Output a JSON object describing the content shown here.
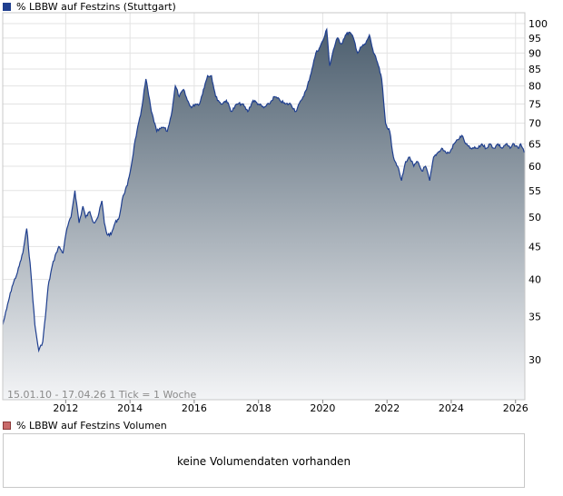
{
  "price_panel": {
    "legend_label": "%  LBBW auf Festzins (Stuttgart)",
    "info_text": "15.01.10 - 17.04.26   1 Tick = 1 Woche"
  },
  "volume_panel": {
    "legend_label": "%  LBBW auf Festzins Volumen",
    "message": "keine Volumendaten vorhanden"
  },
  "colors": {
    "line": "#1f3f8f",
    "fill_top": "#4d5f6f",
    "fill_bottom": "#f3f4f6",
    "grid": "#e3e3e3",
    "frame": "#c8c8c8",
    "volume_swatch": "#c96a6a"
  },
  "chart_data": {
    "type": "area",
    "scale": "log",
    "grid": true,
    "legend": "top-left",
    "xlim": [
      "2010-01-15",
      "2026-04-17"
    ],
    "ylim": [
      26,
      104
    ],
    "x_ticks": [
      "2012",
      "2014",
      "2016",
      "2018",
      "2020",
      "2022",
      "2024",
      "2026"
    ],
    "y_ticks": [
      30,
      35,
      40,
      45,
      50,
      55,
      60,
      65,
      70,
      75,
      80,
      85,
      90,
      95,
      100
    ],
    "series": [
      {
        "x": [
          "2010-01-15",
          "2010-03-01",
          "2010-05-01",
          "2010-07-01",
          "2010-09-01",
          "2010-10-15",
          "2010-12-01",
          "2011-01-15",
          "2011-03-01",
          "2011-04-15",
          "2011-05-15",
          "2011-06-15",
          "2011-08-01",
          "2011-09-15",
          "2011-10-15",
          "2011-12-01",
          "2012-01-15",
          "2012-03-01",
          "2012-04-15",
          "2012-06-01",
          "2012-07-15",
          "2012-08-15",
          "2012-10-01",
          "2012-11-15",
          "2013-01-01",
          "2013-02-15",
          "2013-03-15",
          "2013-04-15",
          "2013-06-01",
          "2013-07-15",
          "2013-09-01",
          "2013-10-15",
          "2013-12-01",
          "2014-01-15",
          "2014-03-01",
          "2014-05-01",
          "2014-07-01",
          "2014-09-01",
          "2014-11-01",
          "2015-01-15",
          "2015-03-01",
          "2015-04-15",
          "2015-06-01",
          "2015-07-15",
          "2015-09-01",
          "2015-10-15",
          "2015-12-01",
          "2016-01-15",
          "2016-03-01",
          "2016-04-15",
          "2016-06-01",
          "2016-07-15",
          "2016-09-01",
          "2016-11-01",
          "2017-01-01",
          "2017-03-01",
          "2017-05-01",
          "2017-07-01",
          "2017-09-01",
          "2017-11-01",
          "2018-01-01",
          "2018-03-01",
          "2018-05-01",
          "2018-07-01",
          "2018-09-01",
          "2018-11-01",
          "2019-01-01",
          "2019-03-01",
          "2019-05-01",
          "2019-07-01",
          "2019-09-01",
          "2019-10-15",
          "2019-12-01",
          "2020-01-15",
          "2020-02-15",
          "2020-03-20",
          "2020-05-01",
          "2020-06-15",
          "2020-08-01",
          "2020-09-15",
          "2020-11-01",
          "2020-12-15",
          "2021-02-01",
          "2021-03-15",
          "2021-05-01",
          "2021-06-15",
          "2021-08-01",
          "2021-09-15",
          "2021-11-01",
          "2021-12-15",
          "2022-02-01",
          "2022-03-15",
          "2022-05-01",
          "2022-06-15",
          "2022-08-01",
          "2022-09-15",
          "2022-11-01",
          "2022-12-15",
          "2023-02-01",
          "2023-03-15",
          "2023-05-01",
          "2023-06-15",
          "2023-08-01",
          "2023-09-15",
          "2023-11-01",
          "2023-12-15",
          "2024-02-01",
          "2024-03-15",
          "2024-05-01",
          "2024-06-15",
          "2024-08-01",
          "2024-09-15",
          "2024-11-01",
          "2024-12-15",
          "2025-02-01",
          "2025-03-15",
          "2025-05-01",
          "2025-06-15",
          "2025-08-01",
          "2025-09-15",
          "2025-11-01",
          "2025-12-15",
          "2026-02-01",
          "2026-03-01",
          "2026-04-17"
        ],
        "y": [
          34,
          36,
          39,
          41,
          44,
          48,
          41,
          34,
          31,
          32,
          35,
          39,
          42,
          44,
          45,
          44,
          48,
          50,
          55,
          49,
          52,
          50,
          51,
          49,
          50,
          53,
          49,
          47,
          47,
          49,
          50,
          54,
          56,
          60,
          66,
          72,
          82,
          73,
          68,
          69,
          68,
          72,
          80,
          77,
          79,
          76,
          74,
          75,
          75,
          79,
          83,
          83,
          77,
          75,
          76,
          73,
          75,
          75,
          73,
          76,
          75,
          74,
          75,
          77,
          76,
          75,
          75,
          73,
          76,
          79,
          85,
          90,
          92,
          95,
          98,
          86,
          91,
          95,
          93,
          96,
          97,
          95,
          90,
          92,
          93,
          96,
          90,
          87,
          82,
          70,
          68,
          62,
          60,
          57,
          61,
          62,
          60,
          61,
          59,
          60,
          57,
          62,
          63,
          64,
          63,
          63,
          65,
          66,
          67,
          65,
          64,
          64,
          64,
          65,
          64,
          65,
          64,
          65,
          64,
          65,
          64,
          65,
          64,
          65,
          63
        ]
      }
    ]
  }
}
